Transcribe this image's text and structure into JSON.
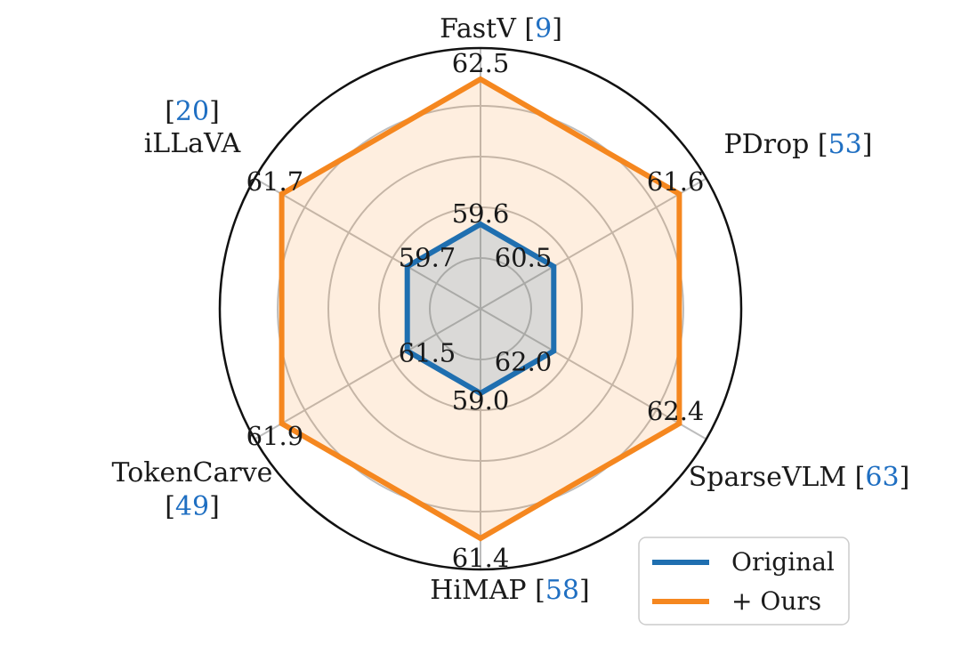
{
  "chart_data": {
    "type": "radar",
    "title": "",
    "axes": [
      {
        "name": "FastV",
        "ref": "9"
      },
      {
        "name": "PDrop",
        "ref": "53"
      },
      {
        "name": "SparseVLM",
        "ref": "63"
      },
      {
        "name": "HiMAP",
        "ref": "58"
      },
      {
        "name": "TokenCarve",
        "ref": "49"
      },
      {
        "name": "iLLaVA",
        "ref": "20"
      }
    ],
    "series": [
      {
        "name": "Original",
        "color": "#1f6fb0",
        "values": [
          59.6,
          60.5,
          62.0,
          59.0,
          61.5,
          59.7
        ],
        "labels": [
          "59.6",
          "60.5",
          "62.0",
          "59.0",
          "61.5",
          "59.7"
        ]
      },
      {
        "name": "+ Ours",
        "color": "#f5871f",
        "values": [
          62.5,
          61.6,
          62.4,
          61.4,
          61.9,
          61.7
        ],
        "labels": [
          "62.5",
          "61.6",
          "62.4",
          "61.4",
          "61.9",
          "61.7"
        ]
      }
    ],
    "grid": true,
    "legend": "bottom-right"
  }
}
